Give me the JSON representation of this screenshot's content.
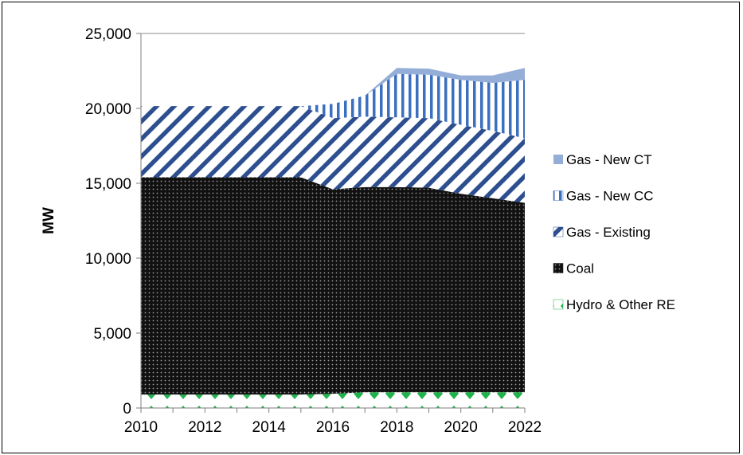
{
  "chart_data": {
    "type": "area",
    "stacked": true,
    "x": [
      2010,
      2011,
      2012,
      2013,
      2014,
      2015,
      2016,
      2017,
      2018,
      2019,
      2020,
      2021,
      2022
    ],
    "xticks": [
      2010,
      2012,
      2014,
      2016,
      2018,
      2020,
      2022
    ],
    "xtick_labels": [
      "2010",
      "2012",
      "2014",
      "2016",
      "2018",
      "2020",
      "2022"
    ],
    "yticks": [
      0,
      5000,
      10000,
      15000,
      20000,
      25000
    ],
    "ytick_labels": [
      "0",
      "5,000",
      "10,000",
      "15,000",
      "20,000",
      "25,000"
    ],
    "ylim": [
      0,
      25000
    ],
    "xlabel": "",
    "ylabel": "MW",
    "title": "",
    "grid": "horizontal",
    "legend_position": "right",
    "series": [
      {
        "name": "Hydro & Other RE",
        "color": "#1fb34a",
        "pattern": "diamonds",
        "values": [
          900,
          900,
          900,
          900,
          900,
          900,
          950,
          1050,
          1050,
          1050,
          1050,
          1050,
          1050
        ]
      },
      {
        "name": "Coal",
        "color": "#1a1a1a",
        "pattern": "dots",
        "values": [
          14500,
          14500,
          14500,
          14500,
          14500,
          14500,
          13650,
          13700,
          13700,
          13650,
          13250,
          12950,
          12650
        ]
      },
      {
        "name": "Gas - Existing",
        "color": "#2e4f8f",
        "pattern": "diagonal",
        "values": [
          4750,
          4750,
          4750,
          4750,
          4750,
          4750,
          4750,
          4700,
          4650,
          4650,
          4600,
          4500,
          4300
        ]
      },
      {
        "name": "Gas - New CC",
        "color": "#3b6fbf",
        "pattern": "vertical",
        "values": [
          0,
          0,
          0,
          0,
          0,
          0,
          950,
          1400,
          2900,
          2900,
          3000,
          3200,
          3900
        ]
      },
      {
        "name": "Gas - New CT",
        "color": "#95aed8",
        "pattern": "solid",
        "values": [
          0,
          0,
          0,
          0,
          0,
          0,
          0,
          0,
          400,
          400,
          300,
          500,
          800
        ]
      }
    ],
    "legend_order": [
      "Gas - New CT",
      "Gas - New CC",
      "Gas - Existing",
      "Coal",
      "Hydro & Other RE"
    ]
  }
}
